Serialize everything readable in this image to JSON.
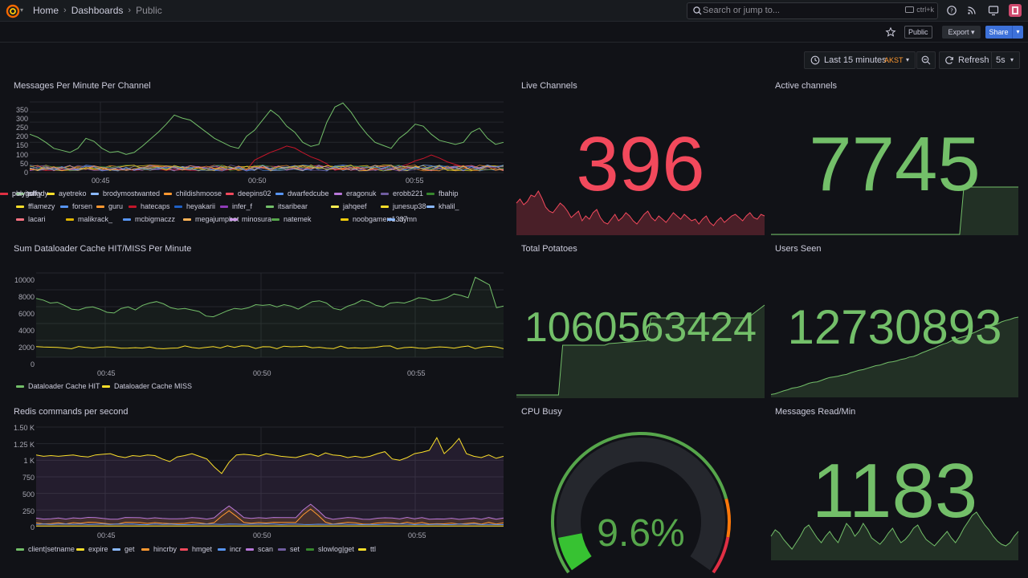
{
  "breadcrumb": [
    "Home",
    "Dashboards",
    "Public"
  ],
  "search": {
    "placeholder": "Search or jump to...",
    "shortcut": "ctrl+k"
  },
  "toolbar": {
    "public_label": "Public",
    "export_label": "Export",
    "share_label": "Share"
  },
  "time": {
    "range_label": "Last 15 minutes",
    "timezone": "AKST",
    "refresh_label": "Refresh",
    "interval": "5s"
  },
  "colors": {
    "green": "#73bf69",
    "red": "#f2495c",
    "yellow": "#fade2a",
    "accent": "#3d71d9"
  },
  "panels": {
    "messages": {
      "title": "Messages Per Minute Per Channel",
      "y_ticks": [
        "350",
        "300",
        "250",
        "200",
        "150",
        "100",
        "50",
        "0"
      ],
      "x_ticks": [
        "00:45",
        "00:50",
        "00:55"
      ],
      "legend": [
        {
          "name": "arky",
          "color": "#73bf69"
        },
        {
          "name": "ayetreko",
          "color": "#fade2a"
        },
        {
          "name": "brodymostwanted",
          "color": "#8ab8ff"
        },
        {
          "name": "childishmoose",
          "color": "#ff9830"
        },
        {
          "name": "deepins02",
          "color": "#f2495c"
        },
        {
          "name": "dwarfedcube",
          "color": "#5794f2"
        },
        {
          "name": "eragonuk",
          "color": "#b877d9"
        },
        {
          "name": "erobb221",
          "color": "#705da0"
        },
        {
          "name": "fbahip",
          "color": "#37872d"
        },
        {
          "name": "fflamezy",
          "color": "#fade2a"
        },
        {
          "name": "forsen",
          "color": "#5794f2"
        },
        {
          "name": "guru",
          "color": "#ff9830"
        },
        {
          "name": "hatecaps",
          "color": "#c4162a"
        },
        {
          "name": "heyakarii",
          "color": "#1f60c4"
        },
        {
          "name": "infer_f",
          "color": "#8f3bb8"
        },
        {
          "name": "itsaribear",
          "color": "#73bf69"
        },
        {
          "name": "jahqeef",
          "color": "#ffee52"
        },
        {
          "name": "junesup38",
          "color": "#fade2a"
        },
        {
          "name": "khalil_",
          "color": "#8ab8ff"
        },
        {
          "name": "lacari",
          "color": "#ff7383"
        },
        {
          "name": "malikrack_",
          "color": "#e0b400"
        },
        {
          "name": "mcbigmaczz",
          "color": "#5794f2"
        },
        {
          "name": "megajumpbot",
          "color": "#ffb357"
        },
        {
          "name": "minosura",
          "color": "#ca95e5"
        },
        {
          "name": "natemek",
          "color": "#56a64b"
        },
        {
          "name": "noobgamerr1337",
          "color": "#f2cc0c"
        },
        {
          "name": "nymn",
          "color": "#8ab8ff"
        },
        {
          "name": "playitshady",
          "color": "#ff780a"
        },
        {
          "name": "polygolf_",
          "color": "#e02f44"
        }
      ]
    },
    "cache": {
      "title": "Sum Dataloader Cache HIT/MISS Per Minute",
      "y_ticks": [
        "10000",
        "8000",
        "6000",
        "4000",
        "2000",
        "0"
      ],
      "x_ticks": [
        "00:45",
        "00:50",
        "00:55"
      ],
      "legend": [
        {
          "name": "Dataloader Cache HIT",
          "color": "#73bf69"
        },
        {
          "name": "Dataloader Cache MISS",
          "color": "#fade2a"
        }
      ]
    },
    "redis": {
      "title": "Redis commands per second",
      "y_ticks": [
        "1.50 K",
        "1.25 K",
        "1 K",
        "750",
        "500",
        "250",
        "0"
      ],
      "x_ticks": [
        "00:45",
        "00:50",
        "00:55"
      ],
      "legend": [
        {
          "name": "client|setname",
          "color": "#73bf69"
        },
        {
          "name": "expire",
          "color": "#fade2a"
        },
        {
          "name": "get",
          "color": "#8ab8ff"
        },
        {
          "name": "hincrby",
          "color": "#ff9830"
        },
        {
          "name": "hmget",
          "color": "#f2495c"
        },
        {
          "name": "incr",
          "color": "#5794f2"
        },
        {
          "name": "scan",
          "color": "#b877d9"
        },
        {
          "name": "set",
          "color": "#705da0"
        },
        {
          "name": "slowlog|get",
          "color": "#37872d"
        },
        {
          "name": "ttl",
          "color": "#fade2a"
        }
      ]
    },
    "live_channels": {
      "title": "Live Channels",
      "value": "396"
    },
    "active_channels": {
      "title": "Active channels",
      "value": "7745"
    },
    "total_potatoes": {
      "title": "Total Potatoes",
      "value": "1060563424"
    },
    "users_seen": {
      "title": "Users Seen",
      "value": "12730893"
    },
    "cpu_busy": {
      "title": "CPU Busy",
      "value": "9.6%",
      "percent": 9.6
    },
    "messages_read": {
      "title": "Messages Read/Min",
      "value": "1183"
    }
  }
}
